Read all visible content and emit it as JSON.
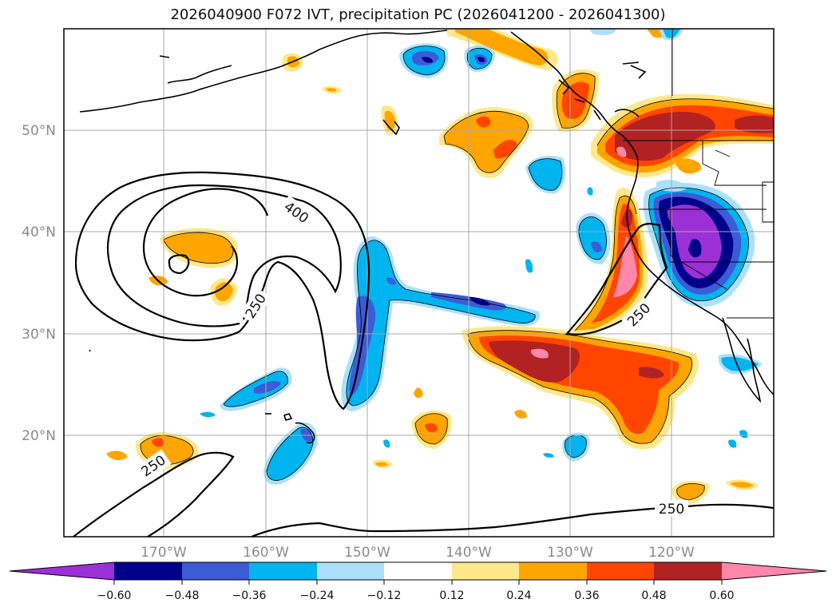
{
  "title": "2026040900 F072 IVT, precipitation PC (2026041200 - 2026041300)",
  "lon_ticks": [
    "170°W",
    "160°W",
    "150°W",
    "140°W",
    "130°W",
    "120°W"
  ],
  "lat_ticks": [
    "50°N",
    "40°N",
    "30°N",
    "20°N"
  ],
  "ivt_labels": [
    "400",
    "250",
    "250",
    "250",
    "250"
  ],
  "colorbar": {
    "tick_labels": [
      "−0.60",
      "−0.48",
      "−0.36",
      "−0.24",
      "−0.12",
      "0.12",
      "0.24",
      "0.36",
      "0.48",
      "0.60"
    ],
    "colors": [
      "#9b30d6",
      "#00008b",
      "#3c5bd6",
      "#00b4f0",
      "#abe0fa",
      "#ffffff",
      "#ffe88a",
      "#ffa500",
      "#ff4500",
      "#b22222",
      "#ff88aa"
    ]
  },
  "colors": {
    "purple": "#9b30d6",
    "navy": "#00008b",
    "royal": "#3c5bd6",
    "sky": "#00b4f0",
    "pale_blue": "#abe0fa",
    "pale_yellow": "#ffe88a",
    "orange": "#ffa500",
    "red_orange": "#ff4500",
    "dark_red": "#b22222",
    "pink": "#ff88aa"
  }
}
